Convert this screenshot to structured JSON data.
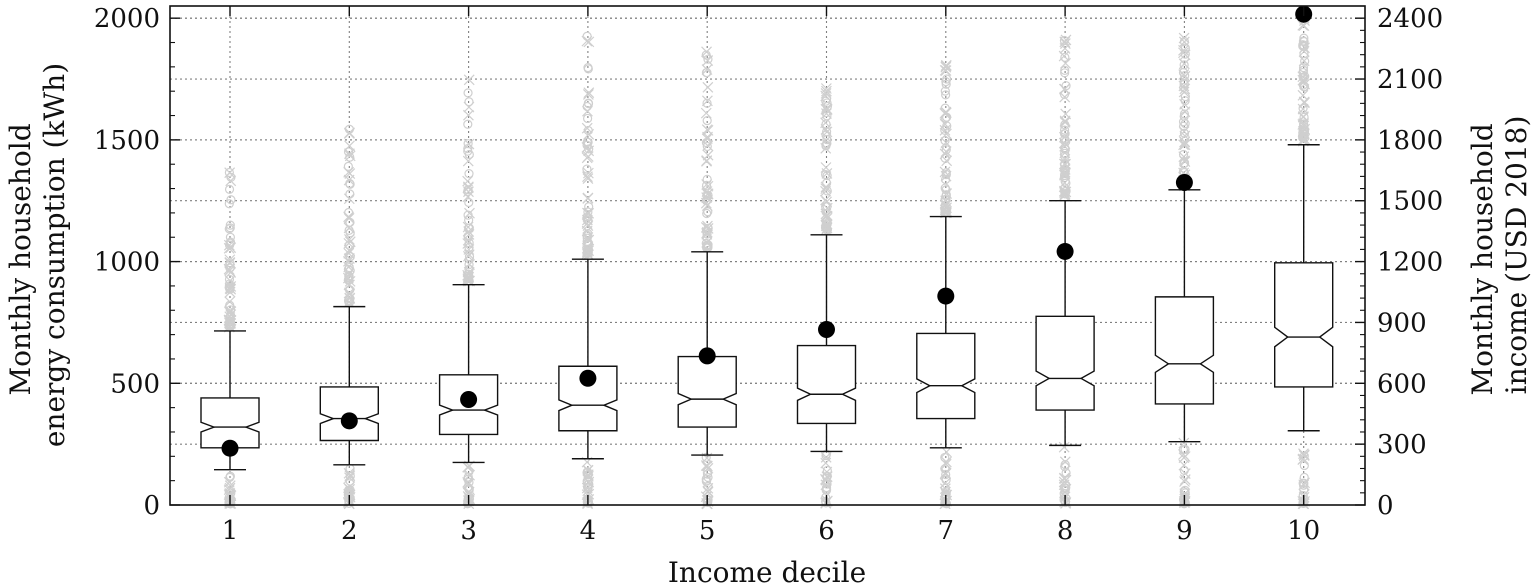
{
  "chart_data": {
    "type": "box",
    "xlabel": "Income decile",
    "ylabel_left": "Monthly household\nenergy consumption (kWh)",
    "ylabel_right": "Monthly household\nincome (USD 2018)",
    "categories": [
      "1",
      "2",
      "3",
      "4",
      "5",
      "6",
      "7",
      "8",
      "9",
      "10"
    ],
    "ylim_left": [
      0,
      2050
    ],
    "yticks_left": [
      0,
      500,
      1000,
      1500,
      2000
    ],
    "ylim_right": [
      0,
      2460
    ],
    "yticks_right": [
      0,
      300,
      600,
      900,
      1200,
      1500,
      1800,
      2100,
      2400
    ],
    "grid": true,
    "notched": true,
    "energy_boxes": [
      {
        "decile": "1",
        "whisker_low": 145,
        "q1": 235,
        "median": 320,
        "q3": 440,
        "whisker_high": 715,
        "notch_low": 300,
        "notch_high": 340,
        "outliers_low_max": 140,
        "outliers_high_min": 730,
        "outliers_high_max": 1420
      },
      {
        "decile": "2",
        "whisker_low": 165,
        "q1": 265,
        "median": 355,
        "q3": 485,
        "whisker_high": 815,
        "notch_low": 335,
        "notch_high": 375,
        "outliers_low_max": 160,
        "outliers_high_min": 830,
        "outliers_high_max": 1580
      },
      {
        "decile": "3",
        "whisker_low": 175,
        "q1": 290,
        "median": 390,
        "q3": 535,
        "whisker_high": 905,
        "notch_low": 370,
        "notch_high": 410,
        "outliers_low_max": 170,
        "outliers_high_min": 920,
        "outliers_high_max": 1800
      },
      {
        "decile": "4",
        "whisker_low": 190,
        "q1": 305,
        "median": 410,
        "q3": 570,
        "whisker_high": 1010,
        "notch_low": 388,
        "notch_high": 432,
        "outliers_low_max": 185,
        "outliers_high_min": 1025,
        "outliers_high_max": 1940
      },
      {
        "decile": "5",
        "whisker_low": 205,
        "q1": 320,
        "median": 435,
        "q3": 610,
        "whisker_high": 1040,
        "notch_low": 412,
        "notch_high": 458,
        "outliers_low_max": 200,
        "outliers_high_min": 1055,
        "outliers_high_max": 1900
      },
      {
        "decile": "6",
        "whisker_low": 220,
        "q1": 335,
        "median": 455,
        "q3": 655,
        "whisker_high": 1110,
        "notch_low": 430,
        "notch_high": 480,
        "outliers_low_max": 215,
        "outliers_high_min": 1130,
        "outliers_high_max": 1720
      },
      {
        "decile": "7",
        "whisker_low": 235,
        "q1": 355,
        "median": 490,
        "q3": 705,
        "whisker_high": 1185,
        "notch_low": 462,
        "notch_high": 518,
        "outliers_low_max": 230,
        "outliers_high_min": 1200,
        "outliers_high_max": 1820
      },
      {
        "decile": "8",
        "whisker_low": 245,
        "q1": 390,
        "median": 520,
        "q3": 775,
        "whisker_high": 1250,
        "notch_low": 490,
        "notch_high": 550,
        "outliers_low_max": 240,
        "outliers_high_min": 1265,
        "outliers_high_max": 1920
      },
      {
        "decile": "9",
        "whisker_low": 260,
        "q1": 415,
        "median": 580,
        "q3": 855,
        "whisker_high": 1295,
        "notch_low": 545,
        "notch_high": 615,
        "outliers_low_max": 255,
        "outliers_high_min": 1310,
        "outliers_high_max": 1950
      },
      {
        "decile": "10",
        "whisker_low": 305,
        "q1": 485,
        "median": 690,
        "q3": 995,
        "whisker_high": 1480,
        "notch_low": 650,
        "notch_high": 730,
        "outliers_low_max": 300,
        "outliers_high_min": 1495,
        "outliers_high_max": 2040
      }
    ],
    "income_points": [
      {
        "decile": "1",
        "income": 280
      },
      {
        "decile": "2",
        "income": 415
      },
      {
        "decile": "3",
        "income": 520
      },
      {
        "decile": "4",
        "income": 625
      },
      {
        "decile": "5",
        "income": 735
      },
      {
        "decile": "6",
        "income": 865
      },
      {
        "decile": "7",
        "income": 1030
      },
      {
        "decile": "8",
        "income": 1250
      },
      {
        "decile": "9",
        "income": 1590
      },
      {
        "decile": "10",
        "income": 2420
      }
    ],
    "colors": {
      "box_edge": "#111111",
      "box_fill": "#ffffff",
      "outlier": "#cfcfcf",
      "income_marker": "#000000",
      "grid": "#808080"
    }
  }
}
